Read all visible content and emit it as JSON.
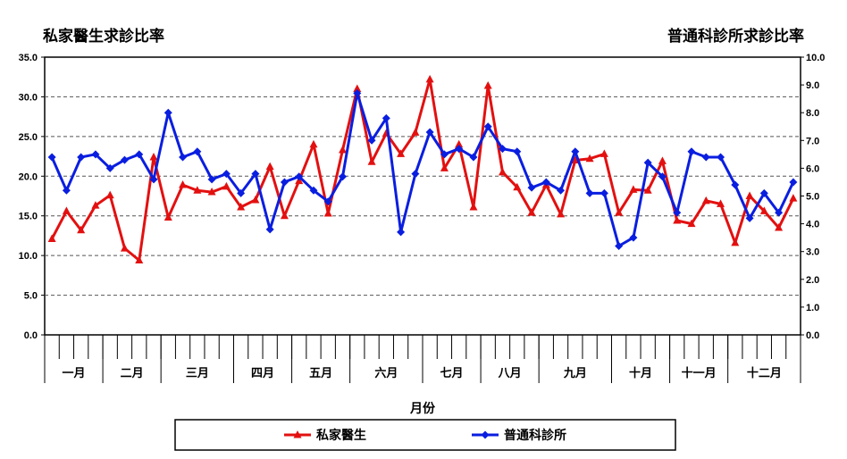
{
  "header": {
    "left_title": "私家醫生求診比率",
    "right_title": "普通科診所求診比率"
  },
  "chart_data": {
    "type": "line",
    "xlabel": "月份",
    "y_left": {
      "lim": [
        0,
        35
      ],
      "ticks": [
        "0.0",
        "5.0",
        "10.0",
        "15.0",
        "20.0",
        "25.0",
        "30.0",
        "35.0"
      ]
    },
    "y_right": {
      "lim": [
        0,
        10
      ],
      "ticks": [
        "0.0",
        "1.0",
        "2.0",
        "3.0",
        "4.0",
        "5.0",
        "6.0",
        "7.0",
        "8.0",
        "9.0",
        "10.0"
      ]
    },
    "grid": "horizontal-dashed",
    "legend_position": "bottom",
    "months": [
      {
        "label": "一月",
        "weeks": 4
      },
      {
        "label": "二月",
        "weeks": 4
      },
      {
        "label": "三月",
        "weeks": 5
      },
      {
        "label": "四月",
        "weeks": 4
      },
      {
        "label": "五月",
        "weeks": 4
      },
      {
        "label": "六月",
        "weeks": 5
      },
      {
        "label": "七月",
        "weeks": 4
      },
      {
        "label": "八月",
        "weeks": 4
      },
      {
        "label": "九月",
        "weeks": 5
      },
      {
        "label": "十月",
        "weeks": 4
      },
      {
        "label": "十一月",
        "weeks": 4
      },
      {
        "label": "十二月",
        "weeks": 5
      }
    ],
    "series": [
      {
        "name": "私家醫生",
        "axis": "left",
        "color": "#e31010",
        "marker": "triangle",
        "values": [
          12.1,
          15.6,
          13.2,
          16.3,
          17.6,
          10.9,
          9.4,
          22.4,
          14.8,
          18.9,
          18.2,
          18.0,
          18.7,
          16.1,
          17.0,
          21.2,
          15.0,
          19.4,
          24.0,
          15.3,
          23.3,
          31.0,
          21.8,
          25.4,
          22.8,
          25.5,
          32.2,
          21.0,
          24.0,
          16.1,
          31.4,
          20.5,
          18.6,
          15.4,
          18.9,
          15.2,
          22.0,
          22.2,
          22.8,
          15.4,
          18.3,
          18.2,
          21.9,
          14.4,
          14.0,
          16.9,
          16.5,
          11.6,
          17.5,
          15.6,
          13.5,
          17.2
        ]
      },
      {
        "name": "普通科診所",
        "axis": "right",
        "color": "#0a1ee0",
        "marker": "diamond",
        "values": [
          6.4,
          5.2,
          6.4,
          6.5,
          6.0,
          6.3,
          6.5,
          5.6,
          8.0,
          6.4,
          6.6,
          5.6,
          5.8,
          5.1,
          5.8,
          3.8,
          5.5,
          5.7,
          5.2,
          4.8,
          5.7,
          8.7,
          7.0,
          7.8,
          3.7,
          5.8,
          7.3,
          6.5,
          6.7,
          6.4,
          7.5,
          6.7,
          6.6,
          5.3,
          5.5,
          5.2,
          6.6,
          5.1,
          5.1,
          3.2,
          3.5,
          6.2,
          5.7,
          4.4,
          6.6,
          6.4,
          6.4,
          5.4,
          4.2,
          5.1,
          4.4,
          5.5
        ]
      }
    ]
  }
}
